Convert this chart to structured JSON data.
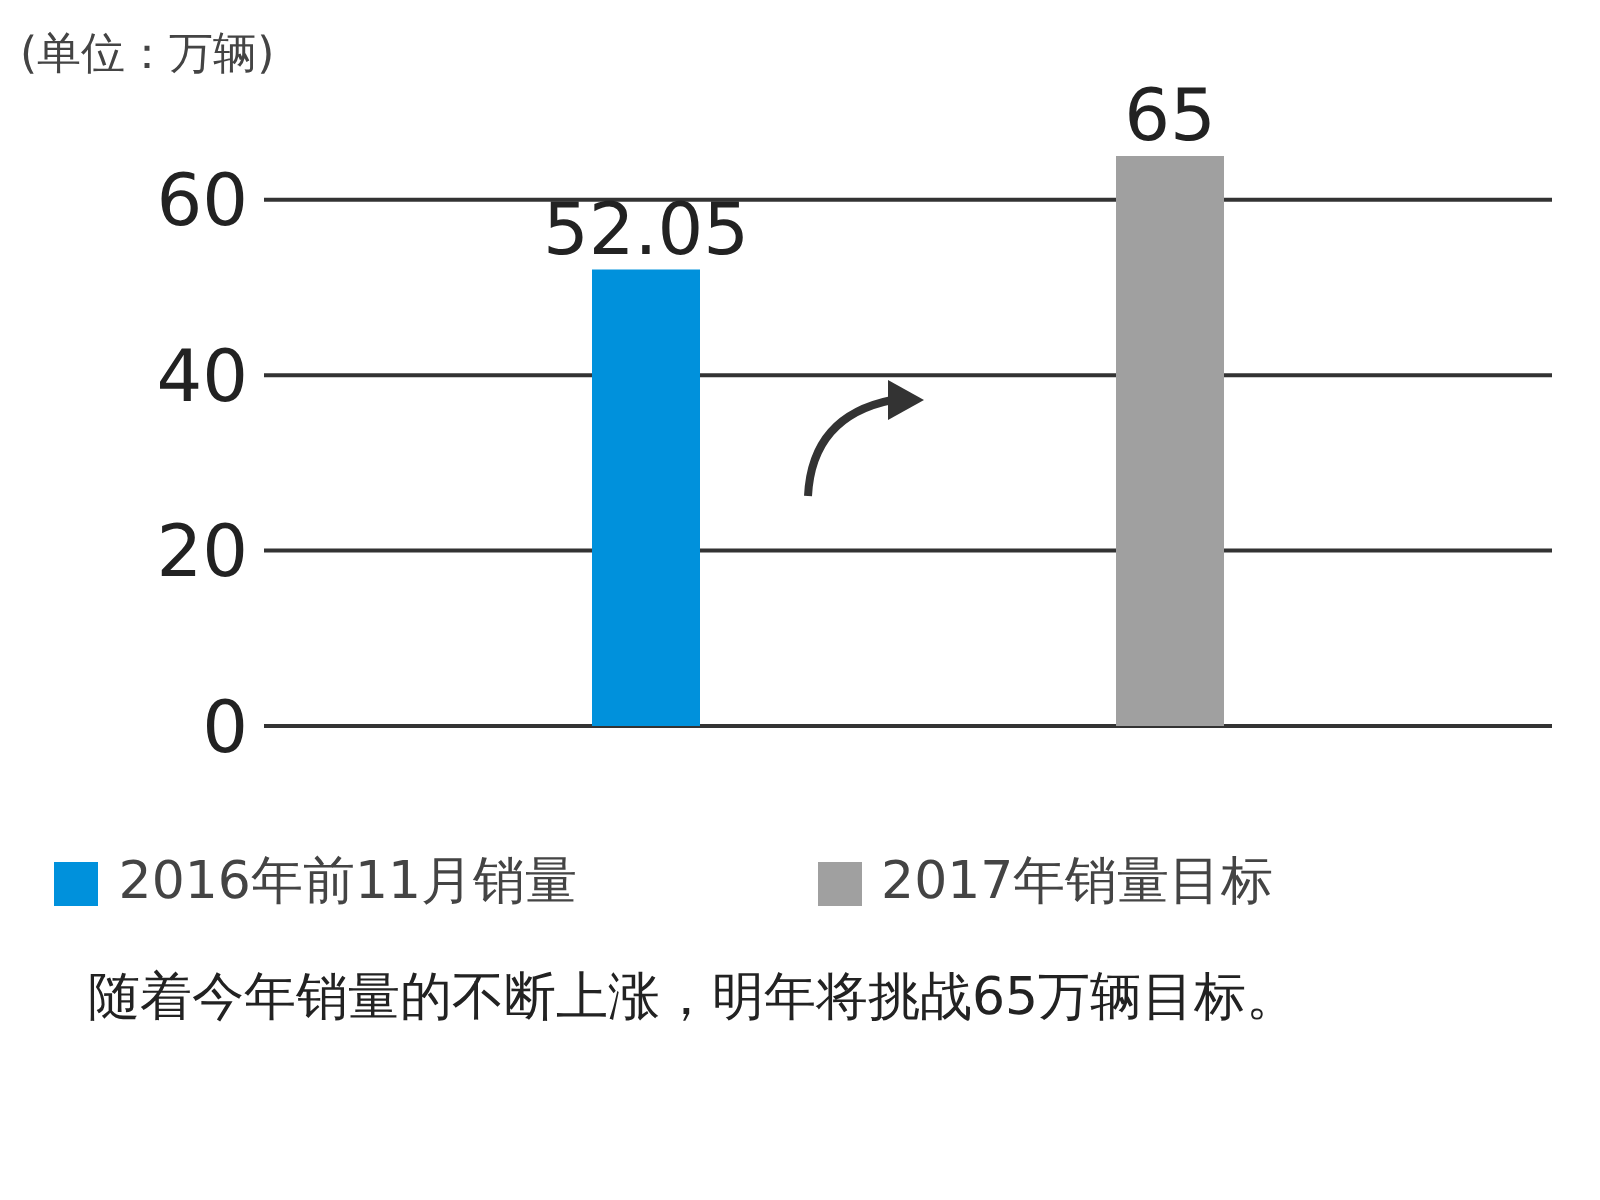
{
  "chart_data": {
    "type": "bar",
    "categories": [
      null,
      null
    ],
    "series": [
      {
        "name": "2016年前11月销量",
        "color": "#0091dc",
        "values": [
          52.05,
          null
        ]
      },
      {
        "name": "2017年销量目标",
        "color": "#a0a0a0",
        "values": [
          null,
          65
        ]
      }
    ],
    "ylim": [
      0,
      65
    ],
    "yticks": [
      0,
      20,
      40,
      60
    ],
    "grid": "y",
    "legend": "bottom",
    "tick_labels": "y",
    "data_labels": true,
    "annotations": [
      "(单位：万辆)",
      "随着今年销量的不断上涨，明年将挑战65万辆目标。"
    ]
  }
}
